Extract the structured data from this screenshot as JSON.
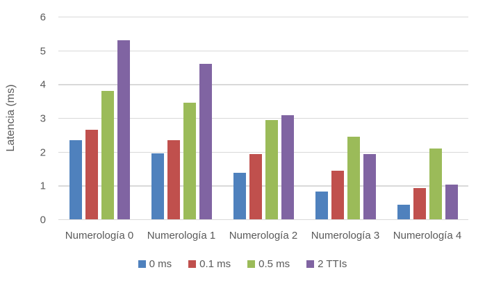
{
  "chart_data": {
    "type": "bar",
    "title": "",
    "xlabel": "",
    "ylabel": "Latencia (ms)",
    "ylim": [
      0,
      6
    ],
    "yticks": [
      0,
      1,
      2,
      3,
      4,
      5,
      6
    ],
    "grid": true,
    "legend_position": "bottom",
    "categories": [
      "Numerología 0",
      "Numerología 1",
      "Numerología 2",
      "Numerología 3",
      "Numerología 4"
    ],
    "series": [
      {
        "name": "0 ms",
        "color": "#4F81BD",
        "values": [
          2.35,
          1.95,
          1.38,
          0.82,
          0.43
        ]
      },
      {
        "name": "0.1 ms",
        "color": "#C0504D",
        "values": [
          2.65,
          2.35,
          1.93,
          1.43,
          0.93
        ]
      },
      {
        "name": "0.5 ms",
        "color": "#9BBB59",
        "values": [
          3.8,
          3.45,
          2.93,
          2.45,
          2.1
        ]
      },
      {
        "name": "2 TTIs",
        "color": "#8064A2",
        "values": [
          5.3,
          4.6,
          3.08,
          1.93,
          1.02
        ]
      }
    ],
    "gridline_color": "#D9D9D9",
    "text_color": "#595959"
  }
}
